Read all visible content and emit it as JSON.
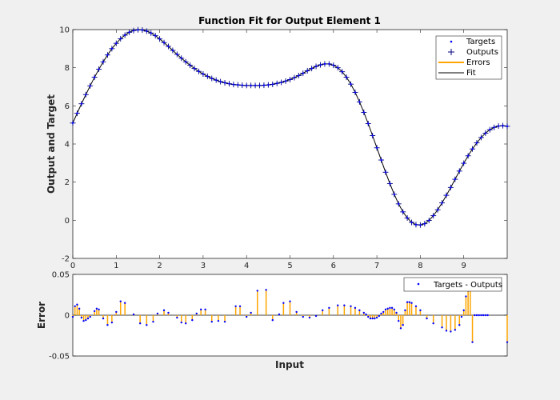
{
  "colors": {
    "targets": "#0000ff",
    "outputs": "#00007f",
    "errors": "#ffa500",
    "fit": "#000000",
    "axes": "#262626"
  },
  "chart_data": [
    {
      "type": "line",
      "title": "Function Fit for Output Element 1",
      "xlabel": "",
      "ylabel": "Output and Target",
      "xlim": [
        0,
        10
      ],
      "ylim": [
        -2,
        10
      ],
      "xticks": [
        0,
        1,
        2,
        3,
        4,
        5,
        6,
        7,
        8,
        9
      ],
      "yticks": [
        -2,
        0,
        2,
        4,
        6,
        8,
        10
      ],
      "grid": false,
      "legend": {
        "placement": "top-right",
        "entries": [
          "Targets",
          "Outputs",
          "Errors",
          "Fit"
        ]
      },
      "x": [
        0.0,
        0.1,
        0.2,
        0.3,
        0.4,
        0.5,
        0.6,
        0.7,
        0.8,
        0.9,
        1.0,
        1.1,
        1.2,
        1.3,
        1.4,
        1.5,
        1.6,
        1.7,
        1.8,
        1.9,
        2.0,
        2.1,
        2.2,
        2.3,
        2.4,
        2.5,
        2.6,
        2.7,
        2.8,
        2.9,
        3.0,
        3.1,
        3.2,
        3.3,
        3.4,
        3.5,
        3.6,
        3.7,
        3.8,
        3.9,
        4.0,
        4.1,
        4.2,
        4.3,
        4.4,
        4.5,
        4.6,
        4.7,
        4.8,
        4.9,
        5.0,
        5.1,
        5.2,
        5.3,
        5.4,
        5.5,
        5.6,
        5.7,
        5.8,
        5.9,
        6.0,
        6.1,
        6.2,
        6.3,
        6.4,
        6.5,
        6.6,
        6.7,
        6.8,
        6.9,
        7.0,
        7.1,
        7.2,
        7.3,
        7.4,
        7.5,
        7.6,
        7.7,
        7.8,
        7.9,
        8.0,
        8.1,
        8.2,
        8.3,
        8.4,
        8.5,
        8.6,
        8.7,
        8.8,
        8.9,
        9.0,
        9.1,
        9.2,
        9.3,
        9.4,
        9.5,
        9.6,
        9.7,
        9.8,
        9.9,
        10.0
      ],
      "series": [
        {
          "name": "Targets",
          "values": [
            5.1,
            5.61,
            6.11,
            6.59,
            7.05,
            7.5,
            7.92,
            8.31,
            8.67,
            9.0,
            9.28,
            9.52,
            9.71,
            9.86,
            9.95,
            9.99,
            9.98,
            9.92,
            9.82,
            9.68,
            9.51,
            9.32,
            9.12,
            8.91,
            8.7,
            8.5,
            8.31,
            8.13,
            7.96,
            7.81,
            7.67,
            7.55,
            7.44,
            7.35,
            7.27,
            7.21,
            7.16,
            7.12,
            7.1,
            7.08,
            7.07,
            7.07,
            7.07,
            7.07,
            7.08,
            7.1,
            7.13,
            7.18,
            7.23,
            7.3,
            7.38,
            7.48,
            7.59,
            7.71,
            7.84,
            7.96,
            8.07,
            8.15,
            8.2,
            8.2,
            8.13,
            8.0,
            7.79,
            7.5,
            7.14,
            6.71,
            6.21,
            5.66,
            5.07,
            4.44,
            3.8,
            3.16,
            2.52,
            1.92,
            1.36,
            0.86,
            0.44,
            0.12,
            -0.11,
            -0.23,
            -0.25,
            -0.18,
            -0.01,
            0.24,
            0.55,
            0.91,
            1.31,
            1.72,
            2.15,
            2.58,
            2.99,
            3.38,
            3.74,
            4.06,
            4.34,
            4.57,
            4.75,
            4.87,
            4.94,
            4.96,
            4.93
          ]
        },
        {
          "name": "Outputs",
          "values": [
            5.1,
            5.61,
            6.11,
            6.59,
            7.05,
            7.5,
            7.92,
            8.31,
            8.67,
            9.0,
            9.28,
            9.52,
            9.71,
            9.86,
            9.95,
            9.99,
            9.98,
            9.92,
            9.82,
            9.68,
            9.51,
            9.32,
            9.12,
            8.91,
            8.7,
            8.5,
            8.31,
            8.13,
            7.96,
            7.81,
            7.67,
            7.55,
            7.44,
            7.35,
            7.27,
            7.21,
            7.16,
            7.12,
            7.1,
            7.08,
            7.07,
            7.07,
            7.07,
            7.07,
            7.08,
            7.1,
            7.13,
            7.18,
            7.23,
            7.3,
            7.38,
            7.48,
            7.59,
            7.71,
            7.84,
            7.96,
            8.07,
            8.15,
            8.2,
            8.2,
            8.13,
            8.0,
            7.79,
            7.5,
            7.14,
            6.71,
            6.21,
            5.66,
            5.07,
            4.44,
            3.8,
            3.16,
            2.52,
            1.92,
            1.36,
            0.86,
            0.44,
            0.12,
            -0.11,
            -0.23,
            -0.25,
            -0.18,
            -0.01,
            0.24,
            0.55,
            0.91,
            1.31,
            1.72,
            2.15,
            2.58,
            2.99,
            3.38,
            3.74,
            4.06,
            4.34,
            4.57,
            4.75,
            4.87,
            4.94,
            4.96,
            4.93
          ]
        },
        {
          "name": "Fit",
          "values": [
            5.1,
            5.61,
            6.11,
            6.59,
            7.05,
            7.5,
            7.92,
            8.31,
            8.67,
            9.0,
            9.28,
            9.52,
            9.71,
            9.86,
            9.95,
            9.99,
            9.98,
            9.92,
            9.82,
            9.68,
            9.51,
            9.32,
            9.12,
            8.91,
            8.7,
            8.5,
            8.31,
            8.13,
            7.96,
            7.81,
            7.67,
            7.55,
            7.44,
            7.35,
            7.27,
            7.21,
            7.16,
            7.12,
            7.1,
            7.08,
            7.07,
            7.07,
            7.07,
            7.07,
            7.08,
            7.1,
            7.13,
            7.18,
            7.23,
            7.3,
            7.38,
            7.48,
            7.59,
            7.71,
            7.84,
            7.96,
            8.07,
            8.15,
            8.2,
            8.2,
            8.13,
            8.0,
            7.79,
            7.5,
            7.14,
            6.71,
            6.21,
            5.66,
            5.07,
            4.44,
            3.8,
            3.16,
            2.52,
            1.92,
            1.36,
            0.86,
            0.44,
            0.12,
            -0.11,
            -0.23,
            -0.25,
            -0.18,
            -0.01,
            0.24,
            0.55,
            0.91,
            1.31,
            1.72,
            2.15,
            2.58,
            2.99,
            3.38,
            3.74,
            4.06,
            4.34,
            4.57,
            4.75,
            4.87,
            4.94,
            4.96,
            4.93
          ]
        }
      ]
    },
    {
      "type": "stem",
      "title": "",
      "xlabel": "Input",
      "ylabel": "Error",
      "xlim": [
        0,
        10
      ],
      "ylim": [
        -0.05,
        0.05
      ],
      "yticks": [
        -0.05,
        0,
        0.05
      ],
      "grid": false,
      "legend": {
        "placement": "top-right",
        "entries": [
          "Targets - Outputs"
        ]
      },
      "x": [
        0.0,
        0.05,
        0.1,
        0.15,
        0.2,
        0.25,
        0.3,
        0.35,
        0.4,
        0.5,
        0.55,
        0.6,
        0.7,
        0.8,
        0.9,
        1.0,
        1.1,
        1.2,
        1.4,
        1.55,
        1.7,
        1.85,
        1.95,
        2.1,
        2.2,
        2.4,
        2.5,
        2.6,
        2.75,
        2.85,
        2.95,
        3.05,
        3.2,
        3.35,
        3.5,
        3.75,
        3.85,
        4.0,
        4.1,
        4.25,
        4.45,
        4.6,
        4.75,
        4.85,
        5.0,
        5.15,
        5.3,
        5.45,
        5.6,
        5.75,
        5.9,
        6.1,
        6.25,
        6.4,
        6.5,
        6.6,
        6.7,
        6.75,
        6.8,
        6.85,
        6.9,
        6.95,
        7.0,
        7.05,
        7.1,
        7.15,
        7.2,
        7.25,
        7.3,
        7.35,
        7.4,
        7.45,
        7.5,
        7.55,
        7.6,
        7.65,
        7.7,
        7.75,
        7.8,
        7.9,
        8.0,
        8.15,
        8.3,
        8.5,
        8.6,
        8.7,
        8.8,
        8.9,
        8.95,
        9.0,
        9.05,
        9.1,
        9.15,
        9.2,
        9.25,
        9.3,
        9.35,
        9.4,
        9.45,
        9.5,
        9.55,
        10.0
      ],
      "series": [
        {
          "name": "Targets - Outputs",
          "values": [
            -0.002,
            0.011,
            0.013,
            0.008,
            -0.003,
            -0.007,
            -0.006,
            -0.004,
            -0.002,
            0.005,
            0.008,
            0.007,
            -0.004,
            -0.012,
            -0.009,
            0.004,
            0.017,
            0.015,
            0.001,
            -0.01,
            -0.012,
            -0.008,
            0.002,
            0.006,
            0.003,
            -0.003,
            -0.009,
            -0.01,
            -0.006,
            0.002,
            0.007,
            0.007,
            -0.008,
            -0.007,
            -0.008,
            0.011,
            0.011,
            -0.002,
            0.003,
            0.03,
            0.031,
            -0.006,
            0.001,
            0.015,
            0.017,
            0.004,
            -0.002,
            -0.003,
            -0.001,
            0.006,
            0.009,
            0.012,
            0.012,
            0.011,
            0.009,
            0.006,
            0.003,
            0.001,
            -0.002,
            -0.004,
            -0.004,
            -0.004,
            -0.003,
            -0.001,
            0.002,
            0.004,
            0.007,
            0.008,
            0.009,
            0.009,
            0.007,
            0.003,
            -0.007,
            -0.016,
            -0.012,
            0.006,
            0.016,
            0.016,
            0.015,
            0.011,
            0.006,
            -0.004,
            -0.01,
            -0.015,
            -0.019,
            -0.02,
            -0.018,
            -0.012,
            -0.002,
            0.006,
            0.023,
            0.03,
            0.031,
            -0.033,
            0.0,
            0.0,
            0.0,
            0.0,
            0.0,
            0.0,
            0.0,
            -0.033
          ]
        }
      ]
    }
  ]
}
